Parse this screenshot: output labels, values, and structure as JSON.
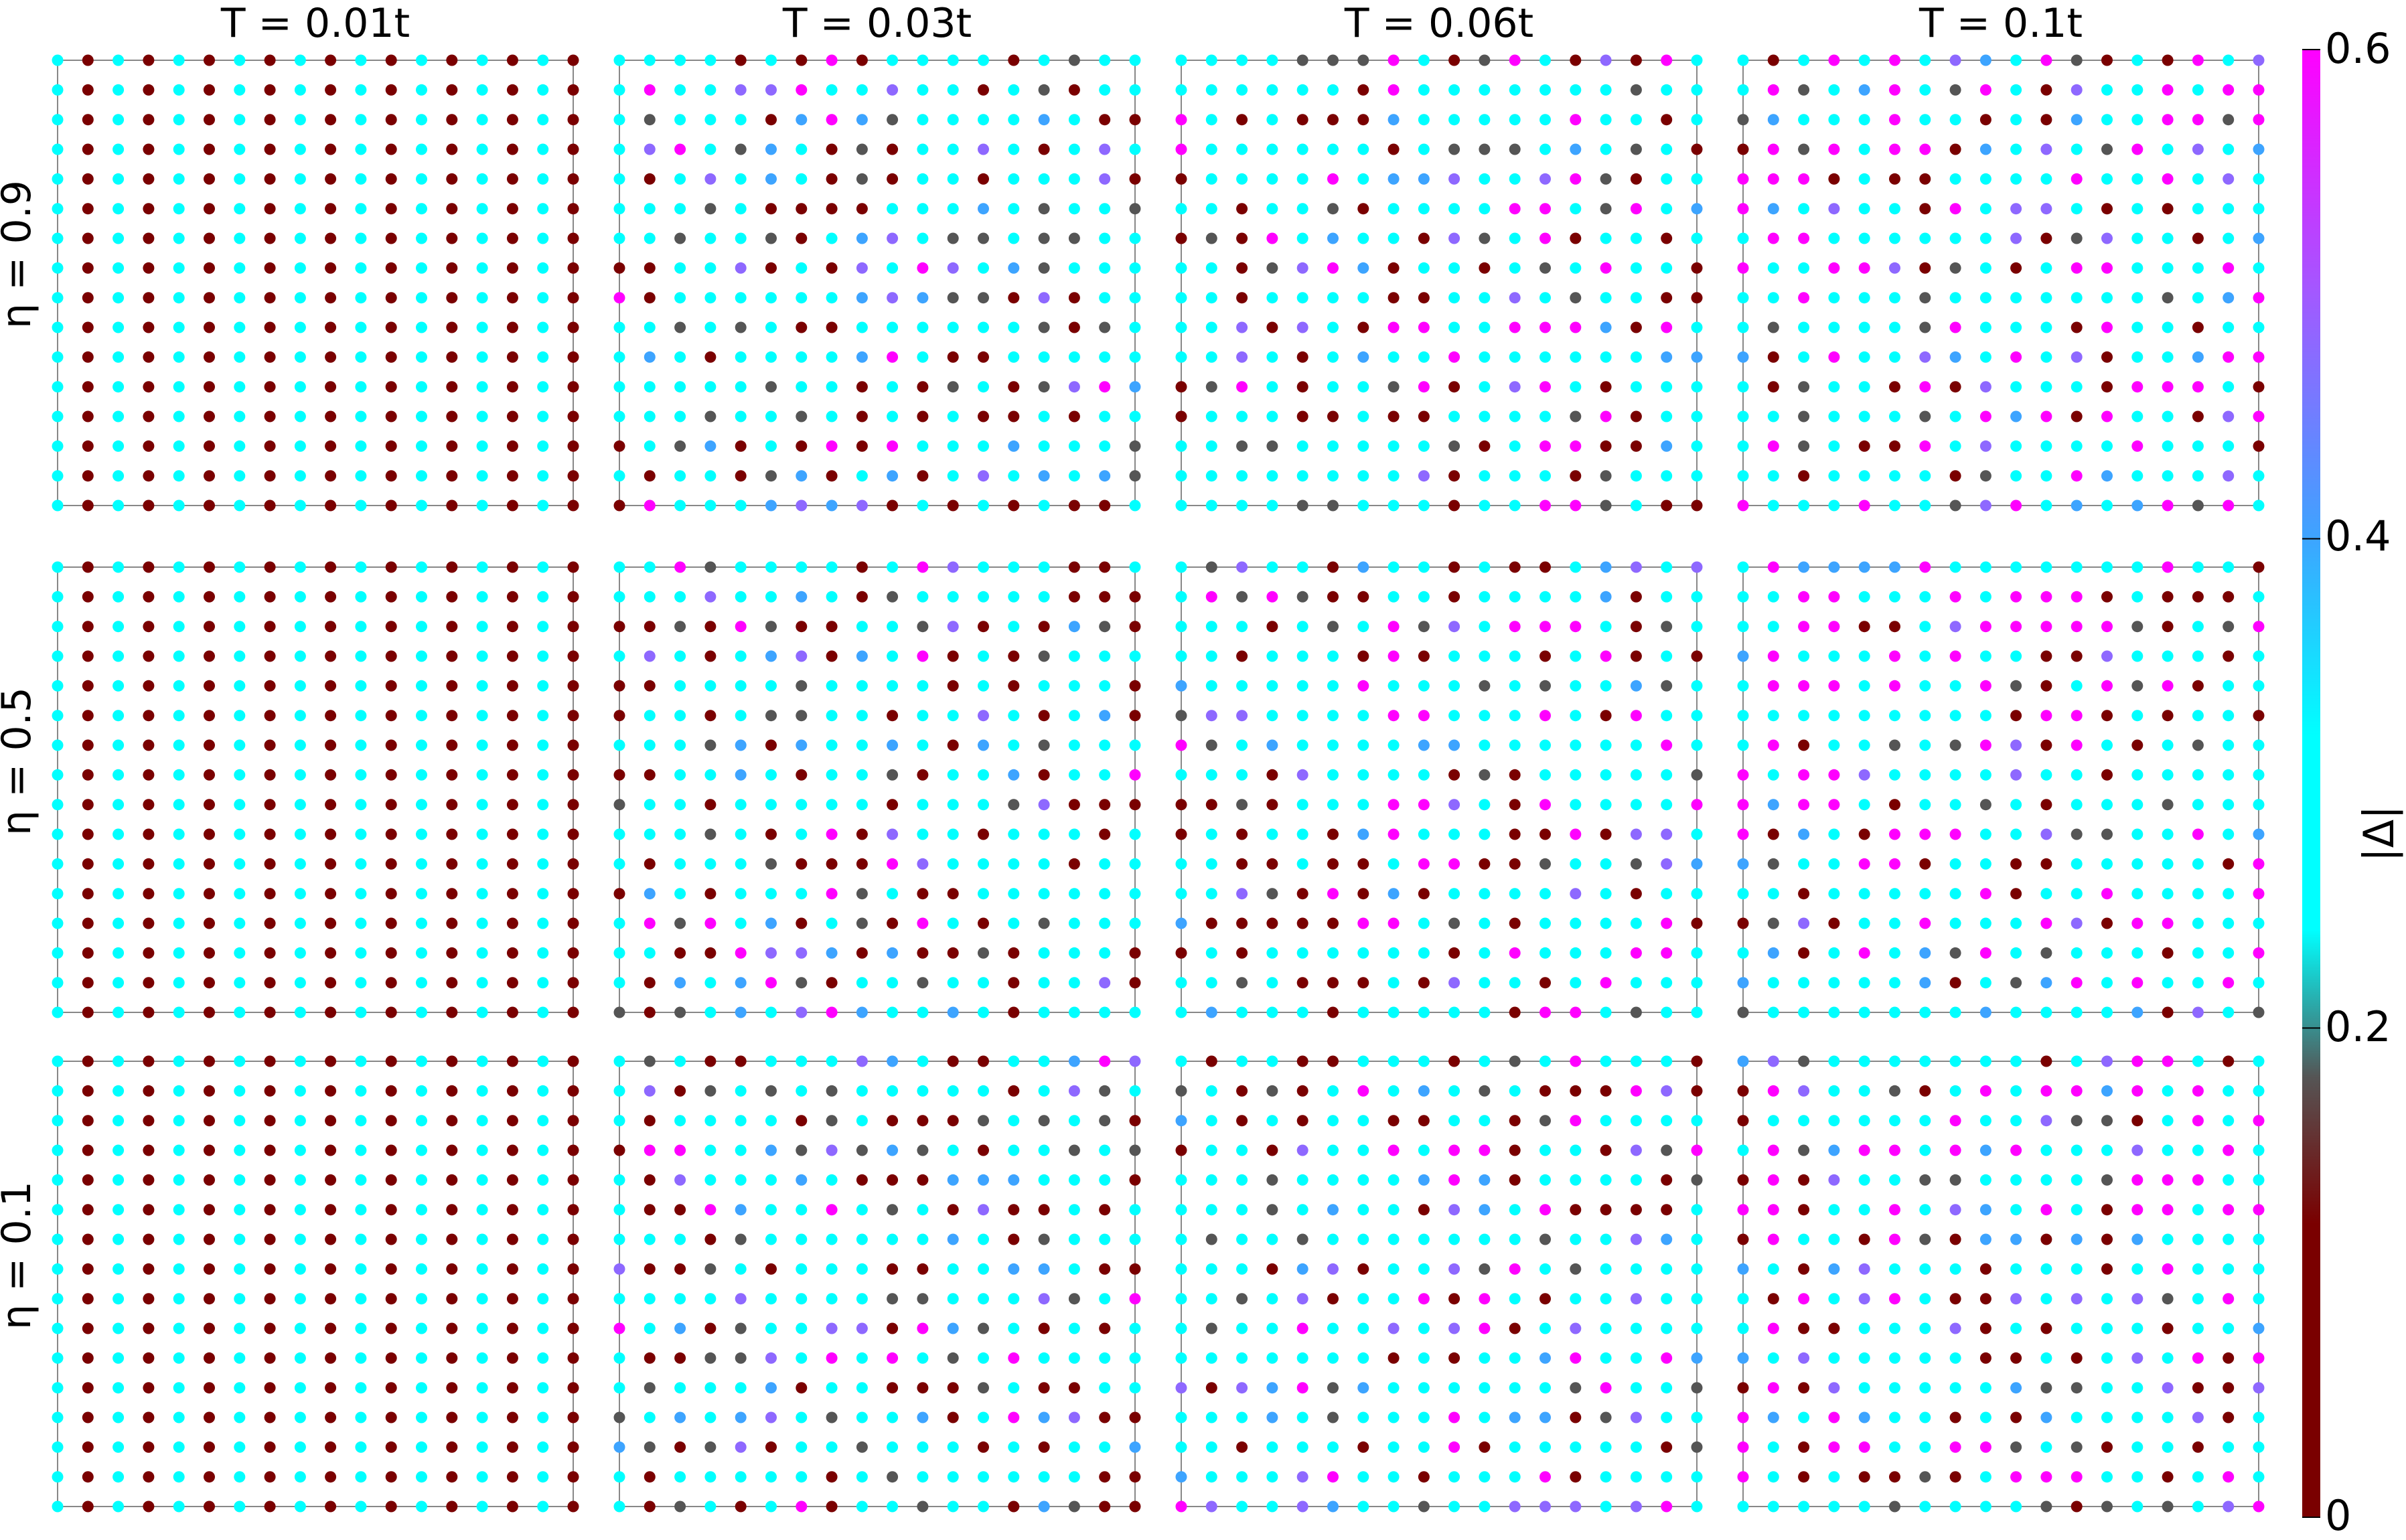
{
  "chart_data": {
    "type": "heatmap",
    "subtype": "lattice-site-scatter-grid",
    "columns": [
      "T = 0.01t",
      "T = 0.03t",
      "T = 0.06t",
      "T = 0.1t"
    ],
    "rows": [
      "η = 0.9",
      "η = 0.5",
      "η = 0.1"
    ],
    "lattice_size": [
      18,
      16
    ],
    "colorbar": {
      "label": "|Δ|",
      "range": [
        0,
        0.6
      ],
      "ticks": [
        "0",
        "0.2",
        "0.4",
        "0.6"
      ],
      "colormap": [
        {
          "value": 0.0,
          "color": "#7a0000"
        },
        {
          "value": 0.12,
          "color": "#7a0000"
        },
        {
          "value": 0.18,
          "color": "#555555"
        },
        {
          "value": 0.24,
          "color": "#00ffff"
        },
        {
          "value": 0.32,
          "color": "#00ffff"
        },
        {
          "value": 0.4,
          "color": "#3da4ff"
        },
        {
          "value": 0.5,
          "color": "#a259ff"
        },
        {
          "value": 0.6,
          "color": "#ff00ff"
        }
      ]
    },
    "site_values_by_T": {
      "T = 0.01t": "checkerboard columns alternating |Δ|≈0.05 and |Δ|≈0.30",
      "T = 0.03t": "disordered, mostly |Δ|≈0.30 with patches of 0.05, 0.18, 0.45, 0.6",
      "T = 0.06t": "disordered, mostly |Δ|≈0.30 with more 0.6 sites",
      "T = 0.1t": "disordered, mostly |Δ|≈0.30 with many 0.6 sites"
    },
    "value_distribution": {
      "T = 0.03t": [
        0.22,
        0.13,
        0.49,
        0.06,
        0.05,
        0.05
      ],
      "T = 0.06t": [
        0.18,
        0.08,
        0.52,
        0.05,
        0.05,
        0.12
      ],
      "T = 0.1t": [
        0.14,
        0.07,
        0.5,
        0.05,
        0.06,
        0.18
      ]
    },
    "value_levels": [
      0.05,
      0.18,
      0.3,
      0.4,
      0.48,
      0.6
    ]
  }
}
